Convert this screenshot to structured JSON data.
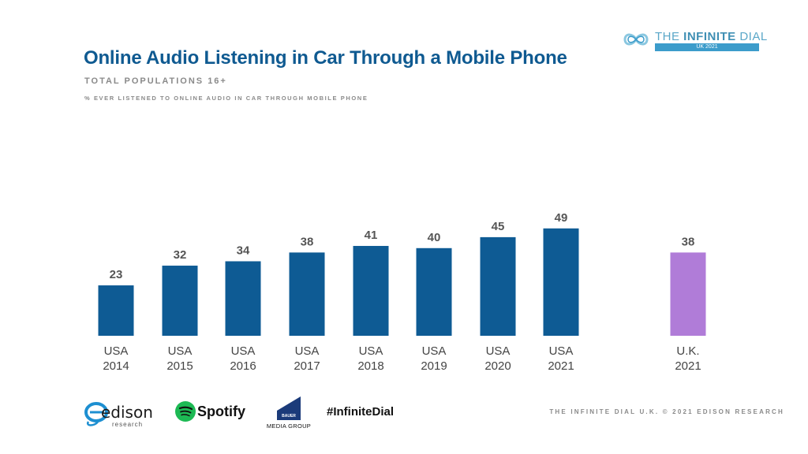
{
  "header": {
    "title": "Online Audio Listening in Car Through a Mobile Phone",
    "subtitle": "TOTAL POPULATIONS 16+",
    "note": "% EVER LISTENED TO ONLINE AUDIO IN CAR THROUGH MOBILE PHONE"
  },
  "brand": {
    "name_light": "THE ",
    "name_bold": "INFINITE",
    "name_rest": " DIAL",
    "edition": "UK 2021"
  },
  "footer": {
    "credit": "THE INFINITE DIAL U.K. © 2021 EDISON RESEARCH",
    "hashtag": "#InfiniteDial",
    "logos": {
      "edison": "edison",
      "edison_sub": "research",
      "spotify": "Spotify",
      "bauer_box": "BAUER",
      "bauer": "MEDIA GROUP"
    }
  },
  "colors": {
    "usa": "#0e5b94",
    "uk": "#b07cd8",
    "title": "#0f5a91"
  },
  "chart_data": {
    "type": "bar",
    "title": "Online Audio Listening in Car Through a Mobile Phone",
    "categories": [
      [
        "USA",
        "2014"
      ],
      [
        "USA",
        "2015"
      ],
      [
        "USA",
        "2016"
      ],
      [
        "USA",
        "2017"
      ],
      [
        "USA",
        "2018"
      ],
      [
        "USA",
        "2019"
      ],
      [
        "USA",
        "2020"
      ],
      [
        "USA",
        "2021"
      ],
      [
        "U.K.",
        "2021"
      ]
    ],
    "values": [
      23,
      32,
      34,
      38,
      41,
      40,
      45,
      49,
      38
    ],
    "bar_colors": [
      "usa",
      "usa",
      "usa",
      "usa",
      "usa",
      "usa",
      "usa",
      "usa",
      "uk"
    ],
    "ylim": [
      0,
      100
    ],
    "grid": false,
    "legend": "none"
  }
}
